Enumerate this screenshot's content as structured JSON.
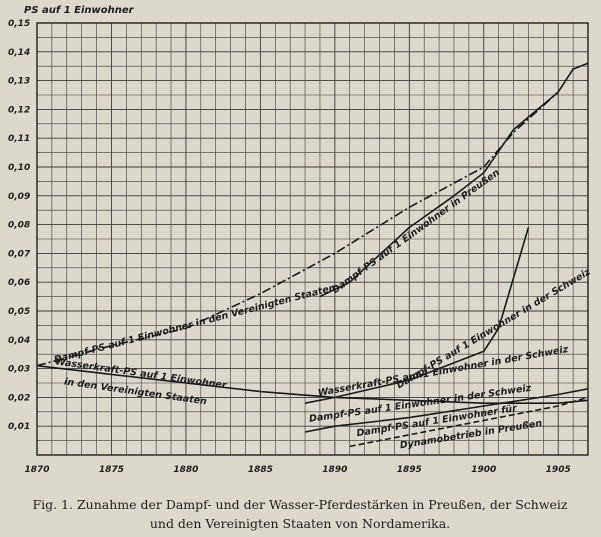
{
  "chart_data": {
    "type": "line",
    "title": "PS auf 1 Einwohner",
    "xlim": [
      1870,
      1907
    ],
    "ylim": [
      0,
      0.15
    ],
    "x_ticks": [
      "1870",
      "1875",
      "1880",
      "1885",
      "1890",
      "1895",
      "1900",
      "1905"
    ],
    "y_ticks": [
      "0,01",
      "0,02",
      "0,03",
      "0,04",
      "0,05",
      "0,06",
      "0,07",
      "0,08",
      "0,09",
      "0,10",
      "0,11",
      "0,12",
      "0,13",
      "0,14",
      "0,15"
    ],
    "grid": true,
    "series": [
      {
        "name": "Dampf-PS auf 1 Einwohner in den Vereinigten Staaten",
        "style": "dashdot",
        "points": [
          [
            1870,
            0.031
          ],
          [
            1875,
            0.038
          ],
          [
            1880,
            0.044
          ],
          [
            1885,
            0.056
          ],
          [
            1890,
            0.07
          ],
          [
            1895,
            0.086
          ],
          [
            1900,
            0.1
          ],
          [
            1902,
            0.112
          ],
          [
            1905,
            0.126
          ]
        ]
      },
      {
        "name": "Dampf-PS auf 1 Einwohner in Preußen",
        "style": "solid",
        "points": [
          [
            1889,
            0.055
          ],
          [
            1891,
            0.06
          ],
          [
            1895,
            0.079
          ],
          [
            1898,
            0.09
          ],
          [
            1900,
            0.098
          ],
          [
            1902,
            0.113
          ],
          [
            1905,
            0.126
          ],
          [
            1906,
            0.134
          ],
          [
            1907,
            0.136
          ]
        ]
      },
      {
        "name": "Dampf-PS auf 1 Einwohner in der Schweiz",
        "style": "solid",
        "points": [
          [
            1888,
            0.018
          ],
          [
            1890,
            0.02
          ],
          [
            1895,
            0.026
          ],
          [
            1900,
            0.036
          ],
          [
            1901,
            0.044
          ],
          [
            1903,
            0.079
          ]
        ]
      },
      {
        "name": "Wasserkraft-PS auf 1 Einwohner in der Schweiz",
        "style": "solid",
        "points": [
          [
            1888,
            0.008
          ],
          [
            1890,
            0.01
          ],
          [
            1895,
            0.013
          ],
          [
            1900,
            0.017
          ],
          [
            1905,
            0.021
          ],
          [
            1907,
            0.023
          ]
        ]
      },
      {
        "name": "Wasserkraft-PS auf 1 Einwohner in den Vereinigten Staaten",
        "style": "solid",
        "points": [
          [
            1870,
            0.031
          ],
          [
            1875,
            0.028
          ],
          [
            1880,
            0.025
          ],
          [
            1885,
            0.022
          ],
          [
            1890,
            0.02
          ],
          [
            1895,
            0.019
          ],
          [
            1900,
            0.018
          ],
          [
            1905,
            0.018
          ],
          [
            1907,
            0.019
          ]
        ]
      },
      {
        "name": "Dampf-PS auf 1 Einwohner für Dynamobetrieb in Preußen",
        "style": "dashed",
        "points": [
          [
            1891,
            0.003
          ],
          [
            1895,
            0.007
          ],
          [
            1900,
            0.012
          ],
          [
            1905,
            0.017
          ],
          [
            1907,
            0.02
          ]
        ]
      }
    ],
    "labels": [
      {
        "text": "Dampf-PS auf 1 Einwohner in den Vereinigten Staaten",
        "x": 1871.2,
        "y": 0.032,
        "angle": -14.5
      },
      {
        "text": "Dampf-PS auf 1 Einwohner in Preußen",
        "x": 1890,
        "y": 0.056,
        "angle": -36
      },
      {
        "text": "Dampf-PS auf 1 Einwohner in der Schweiz",
        "x": 1894.3,
        "y": 0.023,
        "angle": -31
      },
      {
        "text": "Wasserkraft-PS auf 1 Einwohner in der Schweiz",
        "x": 1888.9,
        "y": 0.0205,
        "angle": -10
      },
      {
        "text": "Dampf-PS auf 1 Einwohner in der Schweiz",
        "x": 1888.3,
        "y": 0.0115,
        "angle": -8
      },
      {
        "text": "Wasserkraft-PS auf 1 Einwohner",
        "x": 1871.2,
        "y": 0.0315,
        "angle": 8
      },
      {
        "text": "in den Vereinigten Staaten",
        "x": 1871.8,
        "y": 0.0245,
        "angle": 8
      },
      {
        "text": "Dampf-PS auf 1 Einwohner für",
        "x": 1891.5,
        "y": 0.0065,
        "angle": -9
      },
      {
        "text": "Dynamobetrieb in Preußen",
        "x": 1894.4,
        "y": 0.0023,
        "angle": -9
      }
    ]
  },
  "caption": {
    "line1": "Fig. 1.  Zunahme der Dampf- und der Wasser-Pferdestärken in Preußen, der Schweiz",
    "line2": "und den Vereinigten Staaten von Nordamerika."
  }
}
